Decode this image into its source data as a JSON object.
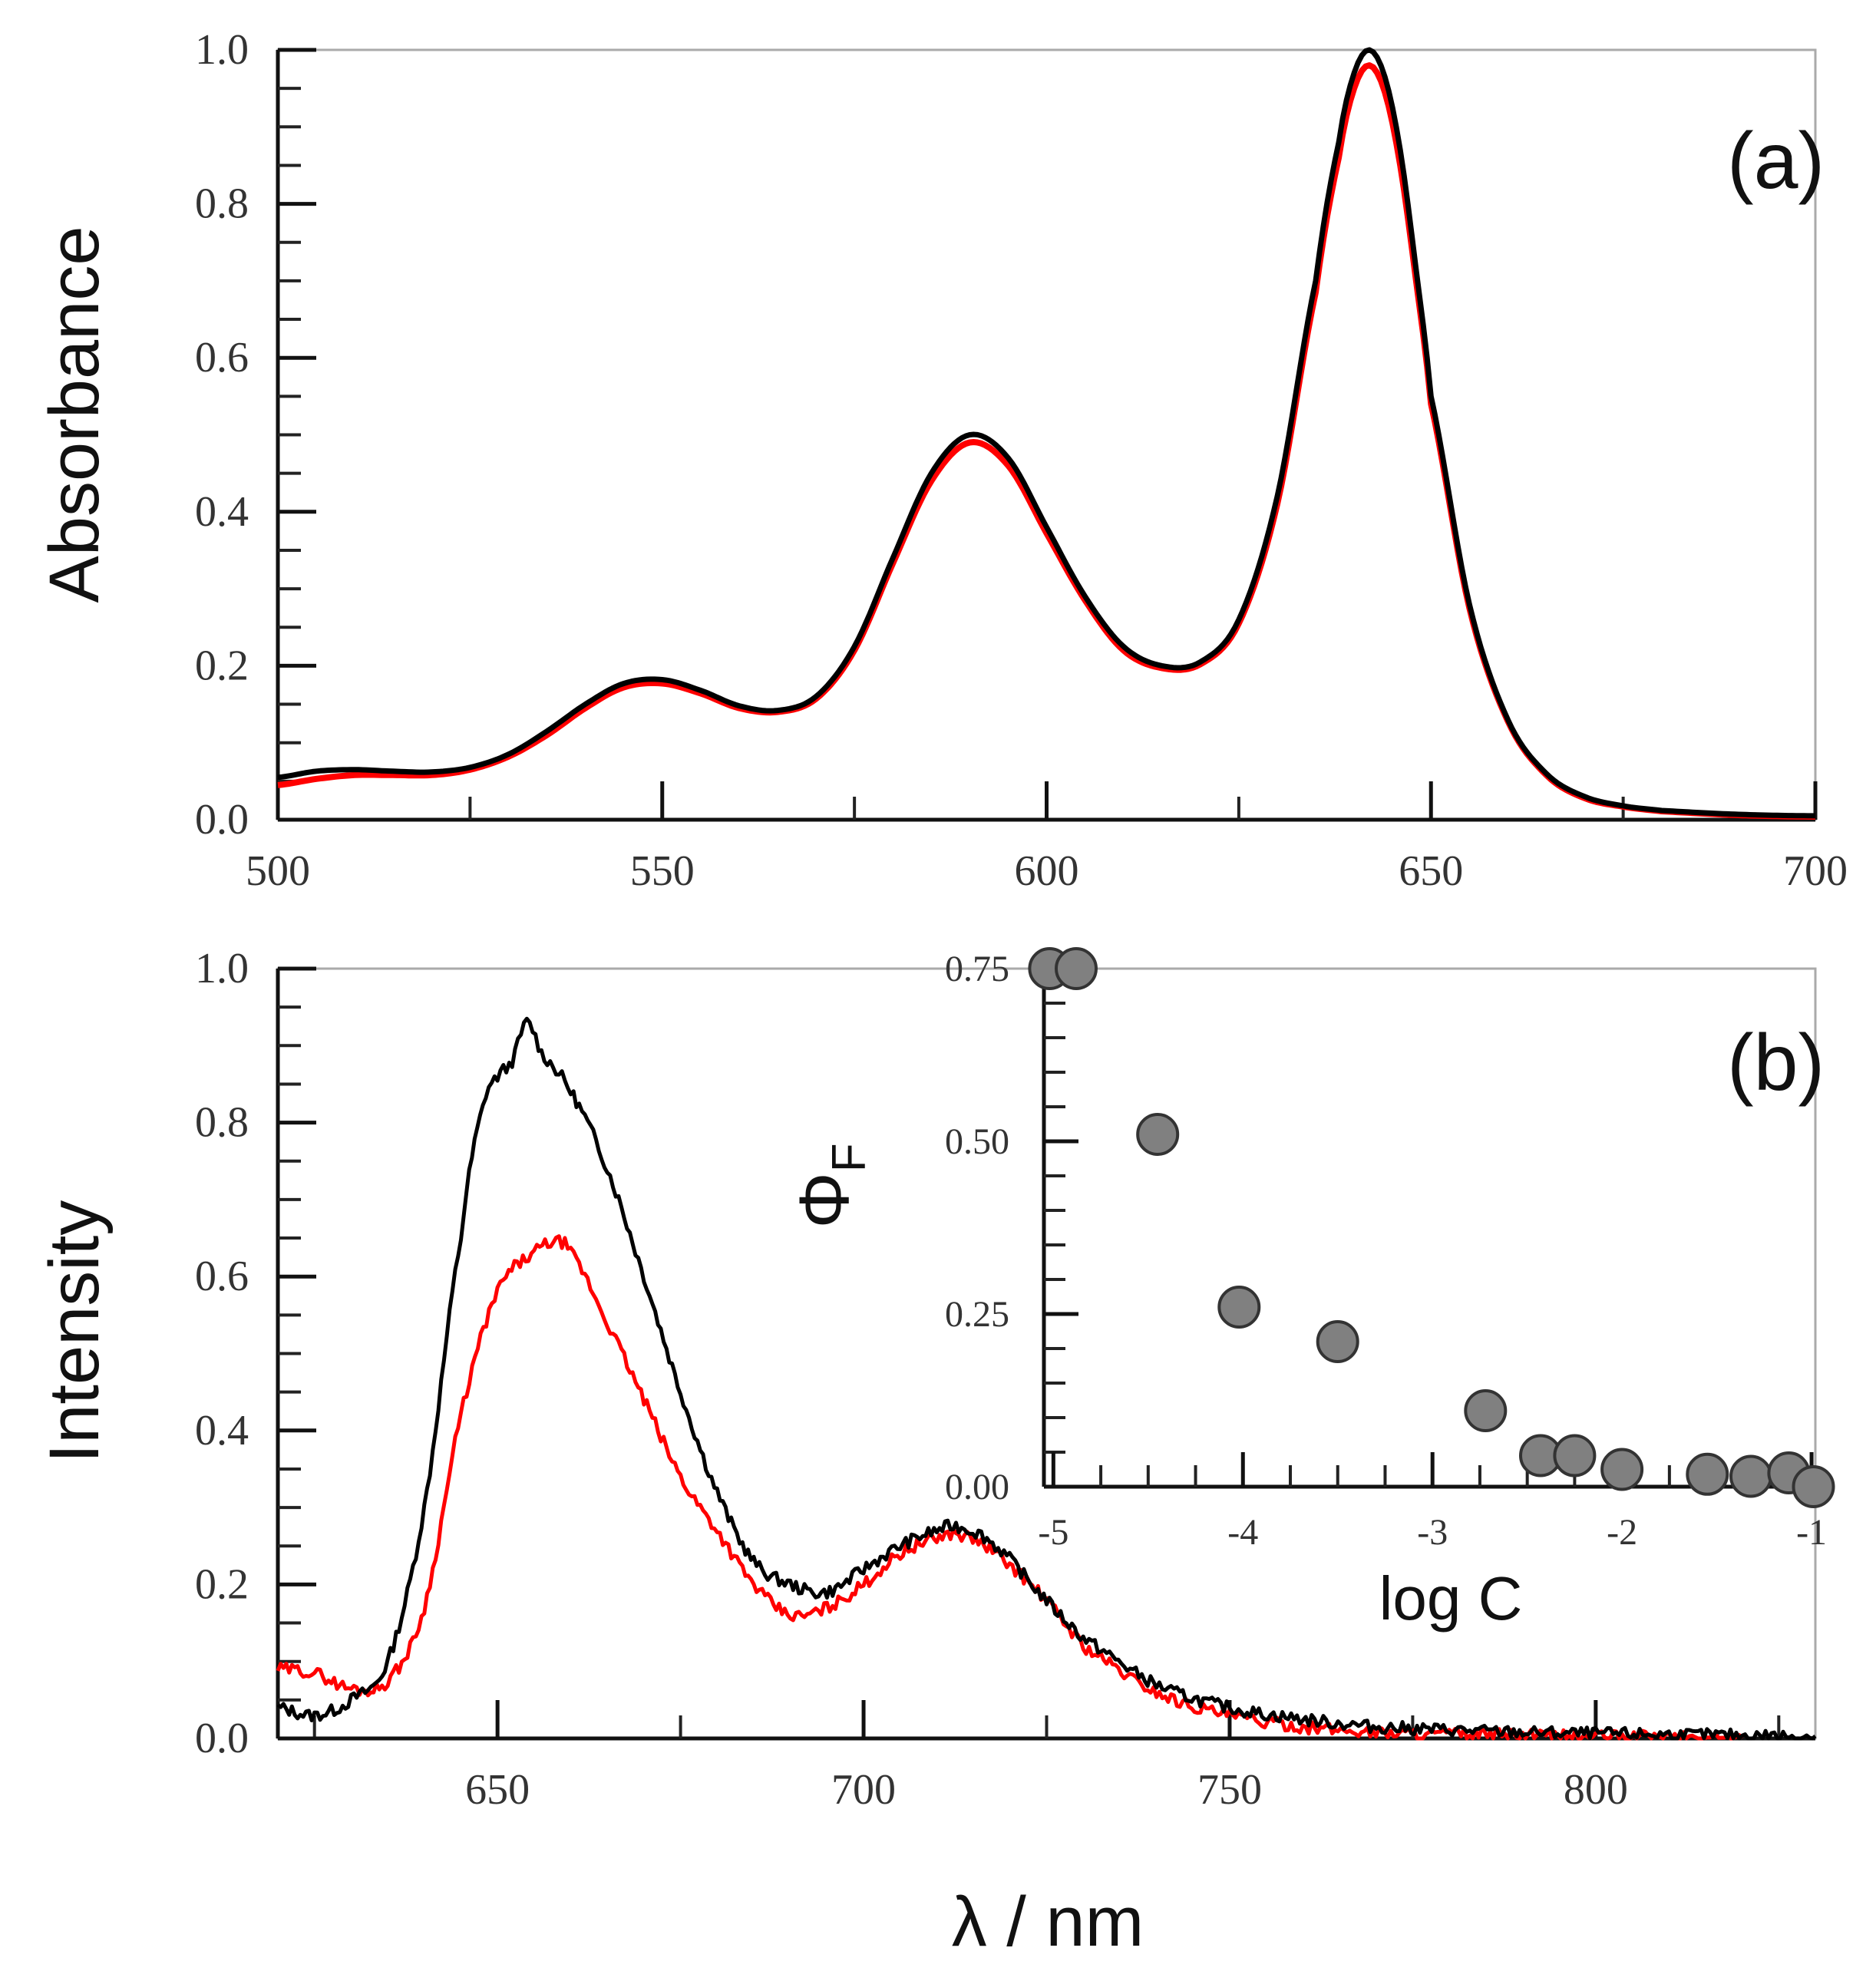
{
  "colors": {
    "series_black": "#000000",
    "series_red": "#ff0000",
    "marker_fill": "#808080",
    "marker_edge": "#333333",
    "axis": "#555555"
  },
  "chart_data": [
    {
      "id": "a",
      "type": "line",
      "panel_label": "(a)",
      "ylabel": "Absorbance",
      "xlabel": "",
      "xlim": [
        500,
        700
      ],
      "ylim": [
        0.0,
        1.0
      ],
      "xticks": [
        500,
        550,
        600,
        650,
        700
      ],
      "xtick_labels": [
        "500",
        "550",
        "600",
        "650",
        "700"
      ],
      "yticks": [
        0.0,
        0.2,
        0.4,
        0.6,
        0.8,
        1.0
      ],
      "ytick_labels": [
        "0.0",
        "0.2",
        "0.4",
        "0.6",
        "0.8",
        "1.0"
      ],
      "series": [
        {
          "name": "black",
          "color": "#000000",
          "points": [
            [
              500,
              0.055
            ],
            [
              505,
              0.063
            ],
            [
              510,
              0.065
            ],
            [
              515,
              0.063
            ],
            [
              520,
              0.062
            ],
            [
              525,
              0.068
            ],
            [
              530,
              0.085
            ],
            [
              535,
              0.115
            ],
            [
              540,
              0.15
            ],
            [
              545,
              0.177
            ],
            [
              550,
              0.182
            ],
            [
              555,
              0.168
            ],
            [
              560,
              0.148
            ],
            [
              565,
              0.142
            ],
            [
              570,
              0.16
            ],
            [
              575,
              0.225
            ],
            [
              580,
              0.34
            ],
            [
              585,
              0.45
            ],
            [
              590,
              0.5
            ],
            [
              595,
              0.47
            ],
            [
              600,
              0.38
            ],
            [
              605,
              0.29
            ],
            [
              610,
              0.225
            ],
            [
              615,
              0.2
            ],
            [
              620,
              0.205
            ],
            [
              625,
              0.26
            ],
            [
              630,
              0.42
            ],
            [
              635,
              0.7
            ],
            [
              638,
              0.88
            ],
            [
              640,
              0.97
            ],
            [
              642,
              1.0
            ],
            [
              644,
              0.965
            ],
            [
              646,
              0.87
            ],
            [
              648,
              0.72
            ],
            [
              650,
              0.55
            ],
            [
              655,
              0.28
            ],
            [
              660,
              0.13
            ],
            [
              665,
              0.06
            ],
            [
              670,
              0.03
            ],
            [
              675,
              0.018
            ],
            [
              680,
              0.012
            ],
            [
              690,
              0.007
            ],
            [
              700,
              0.005
            ]
          ]
        },
        {
          "name": "red",
          "color": "#ff0000",
          "points": [
            [
              500,
              0.045
            ],
            [
              505,
              0.053
            ],
            [
              510,
              0.058
            ],
            [
              515,
              0.058
            ],
            [
              520,
              0.058
            ],
            [
              525,
              0.065
            ],
            [
              530,
              0.082
            ],
            [
              535,
              0.11
            ],
            [
              540,
              0.145
            ],
            [
              545,
              0.172
            ],
            [
              550,
              0.177
            ],
            [
              555,
              0.164
            ],
            [
              560,
              0.145
            ],
            [
              565,
              0.14
            ],
            [
              570,
              0.157
            ],
            [
              575,
              0.22
            ],
            [
              580,
              0.333
            ],
            [
              585,
              0.44
            ],
            [
              590,
              0.49
            ],
            [
              595,
              0.46
            ],
            [
              600,
              0.372
            ],
            [
              605,
              0.285
            ],
            [
              610,
              0.22
            ],
            [
              615,
              0.197
            ],
            [
              620,
              0.202
            ],
            [
              625,
              0.255
            ],
            [
              630,
              0.41
            ],
            [
              635,
              0.685
            ],
            [
              638,
              0.86
            ],
            [
              640,
              0.95
            ],
            [
              642,
              0.98
            ],
            [
              644,
              0.945
            ],
            [
              646,
              0.85
            ],
            [
              648,
              0.705
            ],
            [
              650,
              0.54
            ],
            [
              655,
              0.275
            ],
            [
              660,
              0.128
            ],
            [
              665,
              0.058
            ],
            [
              670,
              0.028
            ],
            [
              675,
              0.017
            ],
            [
              680,
              0.011
            ],
            [
              690,
              0.006
            ],
            [
              700,
              0.004
            ]
          ]
        }
      ]
    },
    {
      "id": "b",
      "type": "line",
      "panel_label": "(b)",
      "ylabel": "Intensity",
      "xlabel": "λ / nm",
      "xlim": [
        620,
        830
      ],
      "ylim": [
        0.0,
        1.0
      ],
      "xticks": [
        650,
        700,
        750,
        800
      ],
      "xtick_labels": [
        "650",
        "700",
        "750",
        "800"
      ],
      "yticks": [
        0.0,
        0.2,
        0.4,
        0.6,
        0.8,
        1.0
      ],
      "ytick_labels": [
        "0.0",
        "0.2",
        "0.4",
        "0.6",
        "0.8",
        "1.0"
      ],
      "series": [
        {
          "name": "black",
          "color": "#000000",
          "points": [
            [
              620,
              0.04
            ],
            [
              625,
              0.03
            ],
            [
              630,
              0.05
            ],
            [
              635,
              0.1
            ],
            [
              640,
              0.3
            ],
            [
              645,
              0.65
            ],
            [
              648,
              0.82
            ],
            [
              650,
              0.86
            ],
            [
              652,
              0.88
            ],
            [
              654,
              0.93
            ],
            [
              656,
              0.89
            ],
            [
              660,
              0.84
            ],
            [
              665,
              0.74
            ],
            [
              670,
              0.6
            ],
            [
              675,
              0.45
            ],
            [
              680,
              0.32
            ],
            [
              685,
              0.23
            ],
            [
              690,
              0.2
            ],
            [
              695,
              0.19
            ],
            [
              700,
              0.22
            ],
            [
              705,
              0.25
            ],
            [
              710,
              0.27
            ],
            [
              713,
              0.275
            ],
            [
              718,
              0.25
            ],
            [
              725,
              0.18
            ],
            [
              730,
              0.13
            ],
            [
              740,
              0.07
            ],
            [
              750,
              0.04
            ],
            [
              760,
              0.025
            ],
            [
              770,
              0.015
            ],
            [
              790,
              0.008
            ],
            [
              810,
              0.005
            ],
            [
              830,
              0.003
            ]
          ],
          "noise": 0.008
        },
        {
          "name": "red",
          "color": "#ff0000",
          "points": [
            [
              620,
              0.09
            ],
            [
              625,
              0.085
            ],
            [
              630,
              0.065
            ],
            [
              635,
              0.075
            ],
            [
              640,
              0.17
            ],
            [
              645,
              0.42
            ],
            [
              650,
              0.58
            ],
            [
              655,
              0.63
            ],
            [
              658,
              0.645
            ],
            [
              660,
              0.63
            ],
            [
              665,
              0.54
            ],
            [
              670,
              0.44
            ],
            [
              675,
              0.34
            ],
            [
              680,
              0.27
            ],
            [
              685,
              0.2
            ],
            [
              690,
              0.16
            ],
            [
              695,
              0.17
            ],
            [
              700,
              0.2
            ],
            [
              705,
              0.24
            ],
            [
              710,
              0.26
            ],
            [
              713,
              0.265
            ],
            [
              718,
              0.24
            ],
            [
              725,
              0.18
            ],
            [
              730,
              0.12
            ],
            [
              740,
              0.06
            ],
            [
              750,
              0.03
            ],
            [
              760,
              0.015
            ],
            [
              770,
              0.008
            ],
            [
              790,
              0.004
            ],
            [
              810,
              0.002
            ],
            [
              820,
              0.0
            ]
          ],
          "noise": 0.008
        }
      ]
    },
    {
      "id": "b-inset",
      "type": "scatter",
      "ylabel": "Φ",
      "ylabel_sub": "F",
      "xlabel": "log C",
      "xlim": [
        -5.05,
        -0.98
      ],
      "ylim": [
        0.0,
        0.75
      ],
      "xticks": [
        -5,
        -4,
        -3,
        -2,
        -1
      ],
      "xtick_labels": [
        "-5",
        "-4",
        "-3",
        "-2",
        "-1"
      ],
      "yticks": [
        0.0,
        0.25,
        0.5,
        0.75
      ],
      "ytick_labels": [
        "0.00",
        "0.25",
        "0.50",
        "0.75"
      ],
      "x": [
        -5.02,
        -4.88,
        -4.45,
        -4.02,
        -3.5,
        -2.72,
        -2.43,
        -2.25,
        -2.0,
        -1.55,
        -1.32,
        -1.12,
        -0.99
      ],
      "y": [
        0.75,
        0.75,
        0.51,
        0.26,
        0.21,
        0.11,
        0.045,
        0.045,
        0.025,
        0.018,
        0.015,
        0.02,
        0.0
      ]
    }
  ]
}
